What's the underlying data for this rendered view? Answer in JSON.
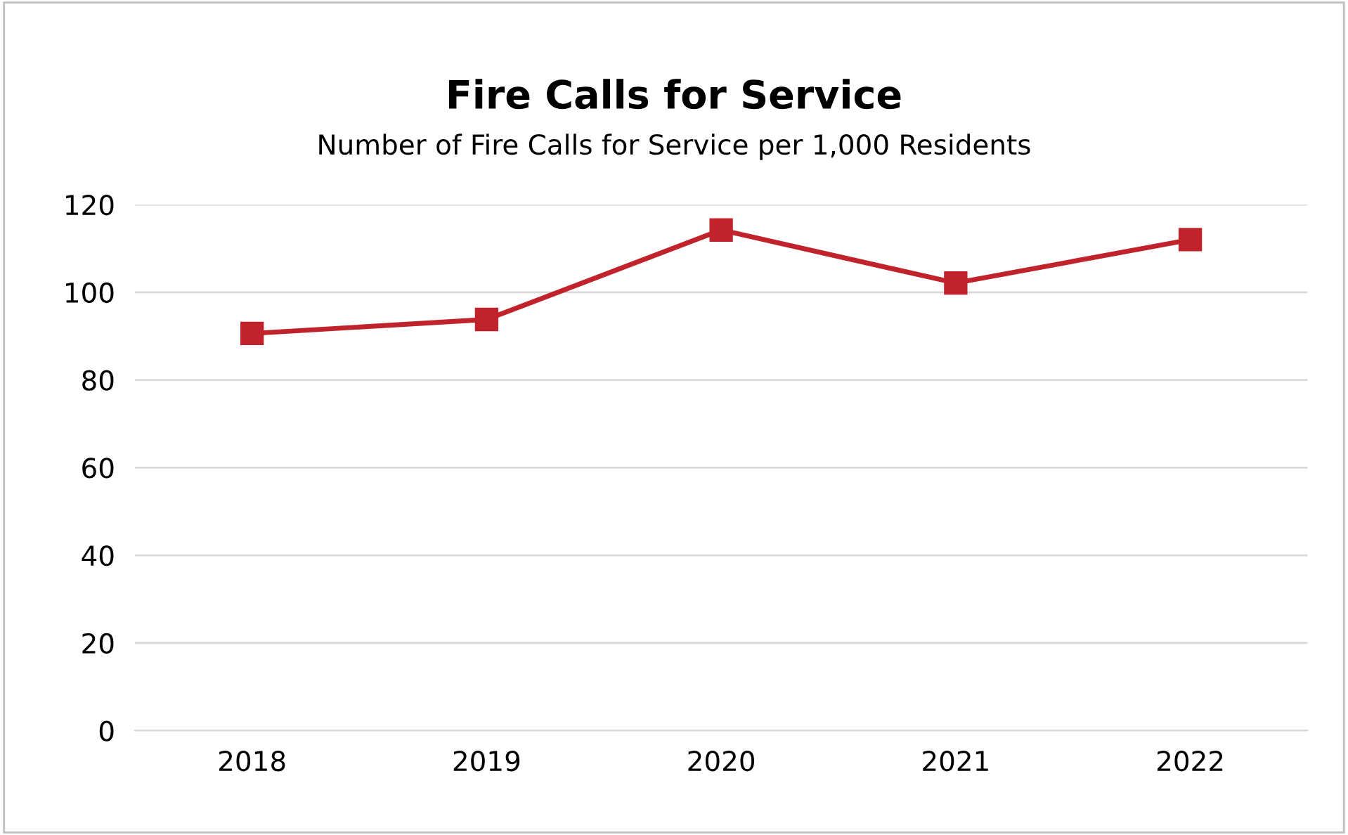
{
  "chart_data": {
    "type": "line",
    "title": "Fire Calls for Service",
    "subtitle": "Number of Fire Calls for Service per 1,000 Residents",
    "categories": [
      "2018",
      "2019",
      "2020",
      "2021",
      "2022"
    ],
    "series": [
      {
        "color": "#c0232c",
        "values": [
          90.6,
          93.8,
          114.2,
          102.1,
          112
        ]
      }
    ],
    "ylim": [
      0,
      120
    ],
    "yticks": [
      0,
      20,
      40,
      60,
      80,
      100,
      120
    ],
    "grid": "y",
    "marker": "square",
    "line_style": "solid",
    "legend": false
  }
}
